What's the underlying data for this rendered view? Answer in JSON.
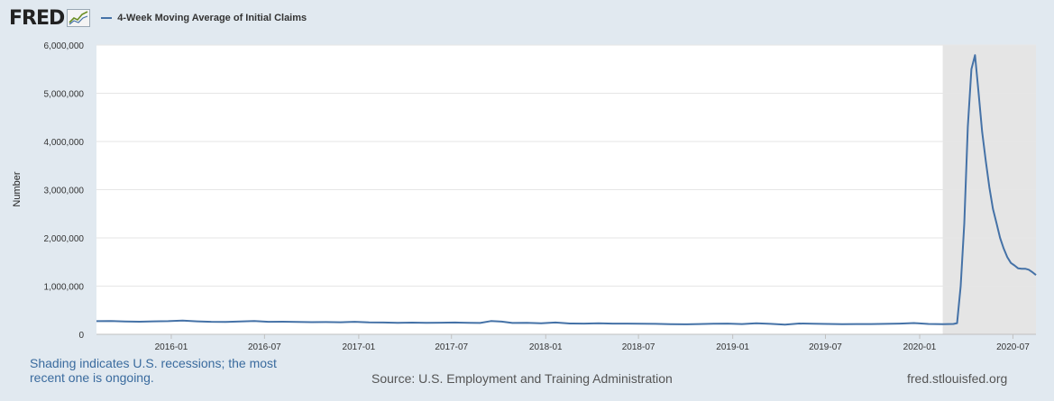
{
  "header": {
    "logo_text": "FRED",
    "logo_icon": "line-graph-icon",
    "legend_label": "4-Week Moving Average of Initial Claims",
    "series_color": "#4572a7"
  },
  "footer": {
    "note": "Shading indicates U.S. recessions; the most recent one is ongoing.",
    "source": "Source: U.S. Employment and Training Administration",
    "url": "fred.stlouisfed.org"
  },
  "chart_data": {
    "type": "line",
    "title": "",
    "xlabel": "",
    "ylabel": "Number",
    "ylim": [
      0,
      6000000
    ],
    "xlim": [
      "2015-08-08",
      "2020-08-15"
    ],
    "grid": "horizontal",
    "yticks": [
      {
        "value": 0,
        "label": "0"
      },
      {
        "value": 1000000,
        "label": "1,000,000"
      },
      {
        "value": 2000000,
        "label": "2,000,000"
      },
      {
        "value": 3000000,
        "label": "3,000,000"
      },
      {
        "value": 4000000,
        "label": "4,000,000"
      },
      {
        "value": 5000000,
        "label": "5,000,000"
      },
      {
        "value": 6000000,
        "label": "6,000,000"
      }
    ],
    "xticks": [
      {
        "date": "2016-01-01",
        "label": "2016-01"
      },
      {
        "date": "2016-07-01",
        "label": "2016-07"
      },
      {
        "date": "2017-01-01",
        "label": "2017-01"
      },
      {
        "date": "2017-07-01",
        "label": "2017-07"
      },
      {
        "date": "2018-01-01",
        "label": "2018-01"
      },
      {
        "date": "2018-07-01",
        "label": "2018-07"
      },
      {
        "date": "2019-01-01",
        "label": "2019-01"
      },
      {
        "date": "2019-07-01",
        "label": "2019-07"
      },
      {
        "date": "2020-01-01",
        "label": "2020-01"
      },
      {
        "date": "2020-07-01",
        "label": "2020-07"
      }
    ],
    "recession": {
      "start": "2020-02-15",
      "end": "2020-08-15",
      "color": "#e5e5e5"
    },
    "series": [
      {
        "name": "4-Week Moving Average of Initial Claims",
        "color": "#4572a7",
        "points": [
          [
            "2015-08-08",
            272000
          ],
          [
            "2015-09-05",
            275000
          ],
          [
            "2015-10-03",
            268000
          ],
          [
            "2015-10-31",
            262000
          ],
          [
            "2015-11-28",
            270000
          ],
          [
            "2015-12-26",
            272000
          ],
          [
            "2016-01-23",
            285000
          ],
          [
            "2016-02-20",
            270000
          ],
          [
            "2016-03-19",
            260000
          ],
          [
            "2016-04-16",
            258000
          ],
          [
            "2016-05-14",
            265000
          ],
          [
            "2016-06-11",
            275000
          ],
          [
            "2016-07-09",
            260000
          ],
          [
            "2016-08-06",
            262000
          ],
          [
            "2016-09-03",
            258000
          ],
          [
            "2016-10-01",
            252000
          ],
          [
            "2016-10-29",
            255000
          ],
          [
            "2016-11-26",
            250000
          ],
          [
            "2016-12-24",
            260000
          ],
          [
            "2017-01-21",
            246000
          ],
          [
            "2017-02-18",
            244000
          ],
          [
            "2017-03-18",
            240000
          ],
          [
            "2017-04-15",
            243000
          ],
          [
            "2017-05-13",
            240000
          ],
          [
            "2017-06-10",
            242000
          ],
          [
            "2017-07-08",
            244000
          ],
          [
            "2017-08-05",
            240000
          ],
          [
            "2017-08-26",
            236000
          ],
          [
            "2017-09-16",
            275000
          ],
          [
            "2017-10-07",
            264000
          ],
          [
            "2017-10-28",
            235000
          ],
          [
            "2017-11-25",
            240000
          ],
          [
            "2017-12-23",
            228000
          ],
          [
            "2018-01-20",
            244000
          ],
          [
            "2018-02-17",
            225000
          ],
          [
            "2018-03-17",
            223000
          ],
          [
            "2018-04-14",
            230000
          ],
          [
            "2018-05-12",
            222000
          ],
          [
            "2018-06-09",
            223000
          ],
          [
            "2018-07-07",
            221000
          ],
          [
            "2018-08-04",
            217000
          ],
          [
            "2018-09-01",
            210000
          ],
          [
            "2018-09-29",
            208000
          ],
          [
            "2018-10-27",
            213000
          ],
          [
            "2018-11-24",
            220000
          ],
          [
            "2018-12-22",
            222000
          ],
          [
            "2019-01-19",
            213000
          ],
          [
            "2019-02-16",
            228000
          ],
          [
            "2019-03-16",
            217000
          ],
          [
            "2019-04-13",
            202000
          ],
          [
            "2019-05-11",
            225000
          ],
          [
            "2019-06-08",
            218000
          ],
          [
            "2019-07-06",
            215000
          ],
          [
            "2019-08-03",
            212000
          ],
          [
            "2019-08-31",
            214000
          ],
          [
            "2019-09-28",
            213000
          ],
          [
            "2019-10-26",
            217000
          ],
          [
            "2019-11-23",
            222000
          ],
          [
            "2019-12-21",
            234000
          ],
          [
            "2020-01-18",
            215000
          ],
          [
            "2020-02-15",
            210000
          ],
          [
            "2020-03-07",
            215000
          ],
          [
            "2020-03-14",
            232000
          ],
          [
            "2020-03-21",
            1000000
          ],
          [
            "2020-03-28",
            2300000
          ],
          [
            "2020-04-04",
            4300000
          ],
          [
            "2020-04-11",
            5500000
          ],
          [
            "2020-04-18",
            5790000
          ],
          [
            "2020-04-25",
            5000000
          ],
          [
            "2020-05-02",
            4200000
          ],
          [
            "2020-05-09",
            3600000
          ],
          [
            "2020-05-16",
            3050000
          ],
          [
            "2020-05-23",
            2600000
          ],
          [
            "2020-05-30",
            2300000
          ],
          [
            "2020-06-06",
            2000000
          ],
          [
            "2020-06-13",
            1780000
          ],
          [
            "2020-06-20",
            1600000
          ],
          [
            "2020-06-27",
            1480000
          ],
          [
            "2020-07-04",
            1430000
          ],
          [
            "2020-07-11",
            1370000
          ],
          [
            "2020-07-18",
            1360000
          ],
          [
            "2020-07-25",
            1360000
          ],
          [
            "2020-08-01",
            1340000
          ],
          [
            "2020-08-08",
            1290000
          ],
          [
            "2020-08-15",
            1230000
          ]
        ]
      }
    ]
  }
}
